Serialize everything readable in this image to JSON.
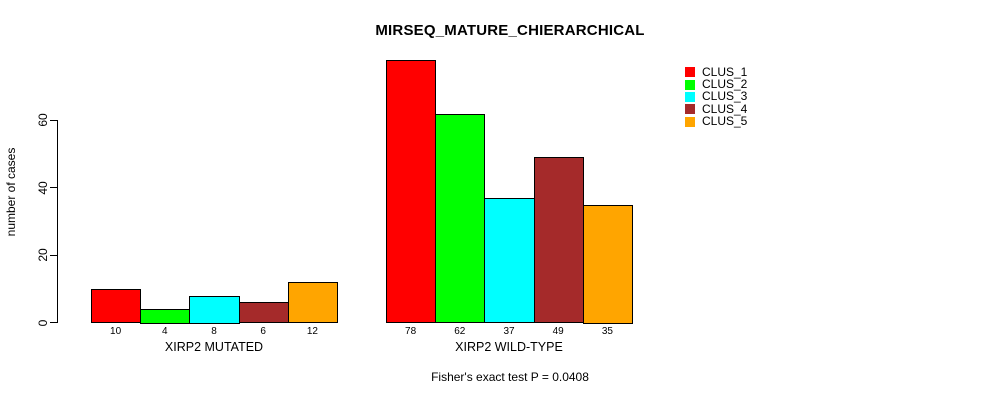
{
  "chart_data": {
    "type": "bar",
    "title": "MIRSEQ_MATURE_CHIERARCHICAL",
    "ylabel": "number of cases",
    "yticks": [
      0,
      20,
      40,
      60
    ],
    "ylim": [
      0,
      78
    ],
    "grid": false,
    "legend_position": "top-right",
    "series_colors": [
      "#ff0000",
      "#00ff00",
      "#00ffff",
      "#a52a2a",
      "#ffa500"
    ],
    "groups": [
      {
        "label": "XIRP2 MUTATED",
        "values": [
          10,
          4,
          8,
          6,
          12
        ]
      },
      {
        "label": "XIRP2 WILD-TYPE",
        "values": [
          78,
          62,
          37,
          49,
          35
        ]
      }
    ],
    "legend": [
      {
        "label": "CLUS_1",
        "color": "#ff0000"
      },
      {
        "label": "CLUS_2",
        "color": "#00ff00"
      },
      {
        "label": "CLUS_3",
        "color": "#00ffff"
      },
      {
        "label": "CLUS_4",
        "color": "#a52a2a"
      },
      {
        "label": "CLUS_5",
        "color": "#ffa500"
      }
    ],
    "annotation": "Fisher's exact test P = 0.0408"
  }
}
